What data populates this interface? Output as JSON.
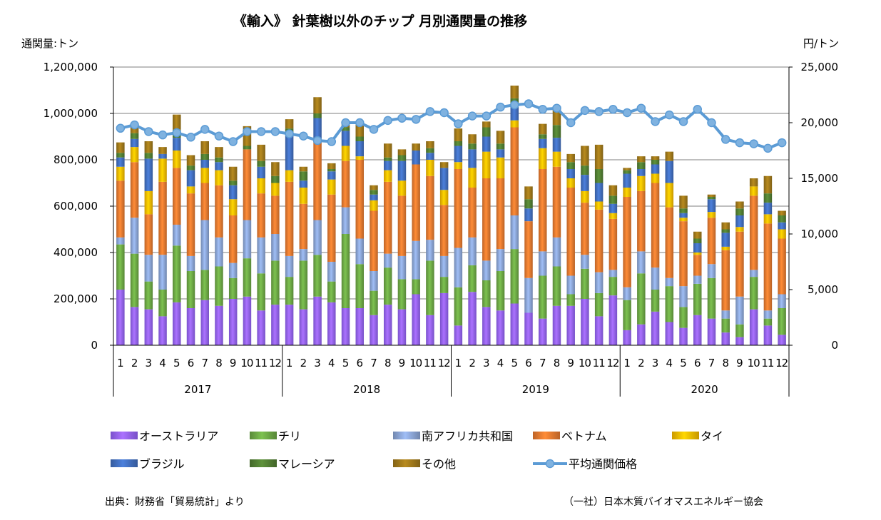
{
  "chart_data": {
    "type": "bar",
    "title": "《輸入》 針葉樹以外のチップ 月別通関量の推移",
    "ylabel_left": "通関量:トン",
    "ylabel_right": "円/トン",
    "y_left_range": [
      0,
      1200000
    ],
    "y_left_ticks": [
      "0",
      "200,000",
      "400,000",
      "600,000",
      "800,000",
      "1,000,000",
      "1,200,000"
    ],
    "y_right_range": [
      0,
      25000
    ],
    "y_right_ticks": [
      "0",
      "5,000",
      "10,000",
      "15,000",
      "20,000",
      "25,000"
    ],
    "month_labels": [
      "1",
      "2",
      "3",
      "4",
      "5",
      "6",
      "7",
      "8",
      "9",
      "10",
      "11",
      "12"
    ],
    "years": [
      "2017",
      "2018",
      "2019",
      "2020"
    ],
    "grid": true,
    "legend_position": "bottom",
    "series": [
      {
        "name": "オーストラリア",
        "color": "#9966ff",
        "values": [
          240000,
          165000,
          155000,
          125000,
          185000,
          160000,
          195000,
          170000,
          200000,
          210000,
          150000,
          175000,
          175000,
          155000,
          210000,
          185000,
          160000,
          160000,
          130000,
          175000,
          155000,
          220000,
          130000,
          225000,
          85000,
          230000,
          165000,
          150000,
          180000,
          140000,
          115000,
          170000,
          170000,
          200000,
          125000,
          215000,
          65000,
          90000,
          145000,
          100000,
          75000,
          130000,
          115000,
          55000,
          35000,
          155000,
          85000,
          45000
        ]
      },
      {
        "name": "チリ",
        "color": "#70ad47",
        "values": [
          195000,
          230000,
          120000,
          115000,
          245000,
          160000,
          130000,
          170000,
          90000,
          165000,
          160000,
          190000,
          120000,
          210000,
          180000,
          90000,
          320000,
          190000,
          105000,
          160000,
          130000,
          65000,
          235000,
          70000,
          165000,
          115000,
          115000,
          170000,
          235000,
          0,
          185000,
          170000,
          50000,
          130000,
          100000,
          80000,
          130000,
          220000,
          95000,
          155000,
          90000,
          135000,
          175000,
          60000,
          55000,
          140000,
          30000,
          115000
        ]
      },
      {
        "name": "南アフリカ共和国",
        "color": "#8faadc",
        "values": [
          30000,
          155000,
          115000,
          150000,
          90000,
          65000,
          215000,
          125000,
          65000,
          165000,
          155000,
          115000,
          90000,
          50000,
          150000,
          85000,
          115000,
          110000,
          85000,
          60000,
          100000,
          165000,
          90000,
          90000,
          170000,
          120000,
          85000,
          95000,
          145000,
          150000,
          105000,
          125000,
          80000,
          60000,
          90000,
          30000,
          55000,
          95000,
          95000,
          35000,
          90000,
          35000,
          60000,
          35000,
          120000,
          30000,
          35000,
          60000
        ]
      },
      {
        "name": "ベトナム",
        "color": "#ed7d31",
        "values": [
          245000,
          240000,
          175000,
          315000,
          245000,
          270000,
          160000,
          225000,
          205000,
          305000,
          190000,
          165000,
          320000,
          195000,
          340000,
          290000,
          200000,
          340000,
          260000,
          310000,
          260000,
          330000,
          275000,
          220000,
          340000,
          215000,
          355000,
          305000,
          380000,
          245000,
          355000,
          305000,
          380000,
          225000,
          270000,
          220000,
          390000,
          260000,
          365000,
          305000,
          280000,
          90000,
          200000,
          260000,
          280000,
          320000,
          375000,
          240000
        ]
      },
      {
        "name": "タイ",
        "color": "#ffc000",
        "values": [
          60000,
          65000,
          100000,
          100000,
          75000,
          30000,
          65000,
          65000,
          70000,
          0,
          65000,
          55000,
          50000,
          70000,
          0,
          65000,
          65000,
          15000,
          45000,
          50000,
          65000,
          0,
          70000,
          65000,
          30000,
          85000,
          115000,
          90000,
          30000,
          0,
          90000,
          65000,
          40000,
          50000,
          35000,
          25000,
          40000,
          65000,
          40000,
          105000,
          15000,
          10000,
          25000,
          15000,
          20000,
          40000,
          40000,
          40000
        ]
      },
      {
        "name": "ブラジル",
        "color": "#4472c4",
        "values": [
          40000,
          35000,
          140000,
          20000,
          55000,
          70000,
          35000,
          35000,
          60000,
          0,
          50000,
          0,
          155000,
          30000,
          100000,
          35000,
          65000,
          65000,
          25000,
          40000,
          85000,
          60000,
          30000,
          95000,
          70000,
          80000,
          65000,
          35000,
          60000,
          55000,
          40000,
          60000,
          40000,
          70000,
          80000,
          40000,
          60000,
          30000,
          40000,
          95000,
          20000,
          40000,
          55000,
          60000,
          50000,
          0,
          50000,
          30000
        ]
      },
      {
        "name": "マレーシア",
        "color": "#548235",
        "values": [
          20000,
          25000,
          25000,
          0,
          35000,
          20000,
          25000,
          20000,
          20000,
          15000,
          25000,
          30000,
          25000,
          40000,
          20000,
          10000,
          15000,
          20000,
          20000,
          15000,
          25000,
          0,
          20000,
          0,
          20000,
          25000,
          40000,
          25000,
          35000,
          40000,
          20000,
          55000,
          30000,
          40000,
          60000,
          35000,
          15000,
          30000,
          20000,
          0,
          20000,
          20000,
          10000,
          15000,
          30000,
          0,
          40000,
          30000
        ]
      },
      {
        "name": "その他",
        "color": "#a47c1c",
        "values": [
          45000,
          35000,
          50000,
          30000,
          65000,
          45000,
          55000,
          45000,
          60000,
          85000,
          70000,
          60000,
          40000,
          20000,
          70000,
          25000,
          20000,
          60000,
          20000,
          60000,
          25000,
          30000,
          30000,
          25000,
          55000,
          40000,
          25000,
          55000,
          55000,
          55000,
          45000,
          80000,
          35000,
          85000,
          105000,
          45000,
          10000,
          25000,
          15000,
          40000,
          55000,
          30000,
          10000,
          30000,
          30000,
          35000,
          75000,
          20000
        ]
      }
    ],
    "line_series": {
      "name": "平均通関価格",
      "color": "#5b9bd5",
      "axis": "right",
      "values": [
        19500,
        19800,
        19200,
        18900,
        19100,
        18700,
        19400,
        18800,
        18300,
        19200,
        19200,
        19200,
        19000,
        18800,
        18400,
        18300,
        20000,
        20000,
        19400,
        20200,
        20400,
        20300,
        21000,
        20900,
        19900,
        20600,
        20600,
        21400,
        21600,
        21700,
        21200,
        21300,
        20000,
        21100,
        21000,
        21200,
        20900,
        21300,
        20100,
        20700,
        20100,
        21200,
        20000,
        18500,
        18200,
        18100,
        17700,
        18200
      ]
    }
  },
  "source_note": "出典：財務省「貿易統計」より",
  "publisher_note": "（一社）日本木質バイオマスエネルギー協会"
}
